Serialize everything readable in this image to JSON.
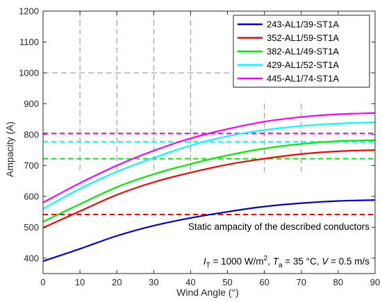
{
  "chart_data": {
    "type": "line",
    "xlabel": "Wind Angle (°)",
    "ylabel": "Ampacity (A)",
    "xlim": [
      0,
      90
    ],
    "ylim": [
      350,
      1200
    ],
    "xticks": [
      0,
      10,
      20,
      30,
      40,
      50,
      60,
      70,
      80,
      90
    ],
    "yticks": [
      400,
      500,
      600,
      700,
      800,
      900,
      1000,
      1100,
      1200
    ],
    "legend_position": "top-right",
    "x": [
      0,
      10,
      20,
      30,
      40,
      50,
      60,
      70,
      80,
      90
    ],
    "series": [
      {
        "name": "243-AL1/39-ST1A",
        "color": "#0000cc",
        "values": [
          390,
          430,
          472,
          505,
          530,
          550,
          567,
          578,
          585,
          588
        ],
        "static": 541
      },
      {
        "name": "352-AL1/59-ST1A",
        "color": "#ff0000",
        "values": [
          498,
          552,
          605,
          646,
          677,
          703,
          722,
          737,
          746,
          750
        ],
        "static": 541
      },
      {
        "name": "382-AL1/49-ST1A",
        "color": "#00ee00",
        "values": [
          518,
          575,
          630,
          672,
          705,
          733,
          755,
          770,
          779,
          782
        ],
        "static": 722
      },
      {
        "name": "429-AL1/52-ST1A",
        "color": "#00ffff",
        "values": [
          560,
          625,
          680,
          725,
          765,
          795,
          815,
          828,
          836,
          840
        ],
        "static": 777
      },
      {
        "name": "445-AL1/74-ST1A",
        "color": "#ff00ff",
        "values": [
          580,
          643,
          700,
          748,
          788,
          818,
          842,
          857,
          866,
          870
        ],
        "static": 804
      }
    ],
    "annotations": {
      "static_label": "Static ampacity of the described conductors",
      "conditions": {
        "I_sym": "I",
        "I_sub": "T",
        "I_rest": " = 1000 W/m",
        "I_sup": "2",
        "sep1": ", ",
        "T_sym": "T",
        "T_sub": "a",
        "T_rest": " = 35 °C, ",
        "V_sym": "V",
        "V_rest": " = 0.5 m/s"
      }
    }
  }
}
